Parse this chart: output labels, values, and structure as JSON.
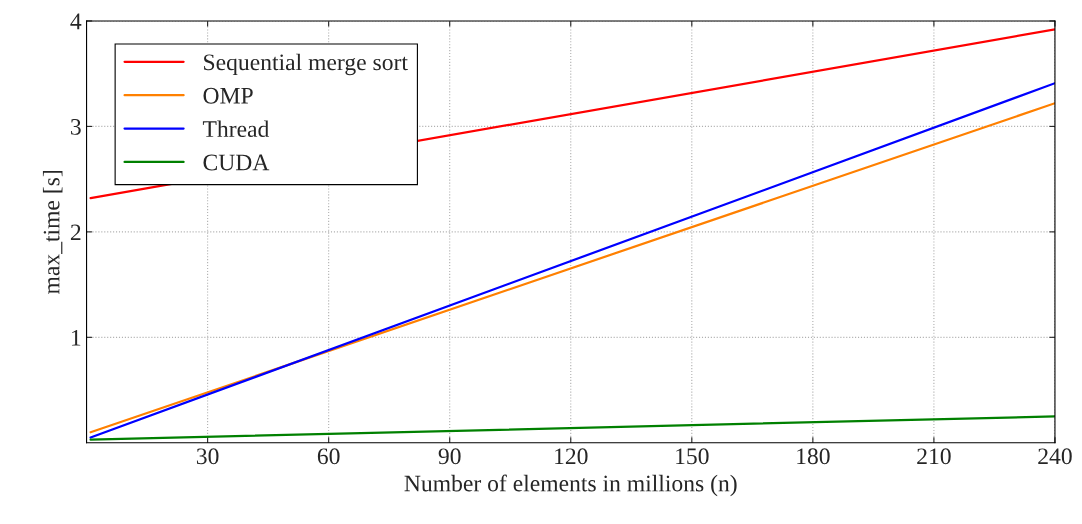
{
  "chart_data": {
    "type": "line",
    "xlabel": "Number of elements in millions (n)",
    "ylabel": "max_time [s]",
    "x": [
      1,
      240
    ],
    "series": [
      {
        "name": "Sequential merge sort",
        "color": "#ff0000",
        "values": [
          2.32,
          3.92
        ]
      },
      {
        "name": "OMP",
        "color": "#ff8000",
        "values": [
          0.1,
          3.22
        ]
      },
      {
        "name": "Thread",
        "color": "#0000ff",
        "values": [
          0.05,
          3.41
        ]
      },
      {
        "name": "CUDA",
        "color": "#008000",
        "values": [
          0.03,
          0.25
        ]
      }
    ],
    "xlim": [
      0,
      240
    ],
    "xticks": [
      30,
      60,
      90,
      120,
      150,
      180,
      210,
      240
    ],
    "ylim": [
      0,
      4
    ],
    "yticks": [
      1,
      2,
      3,
      4
    ],
    "grid": true,
    "legend": "top left",
    "marker": "none",
    "line_style": "solid"
  }
}
